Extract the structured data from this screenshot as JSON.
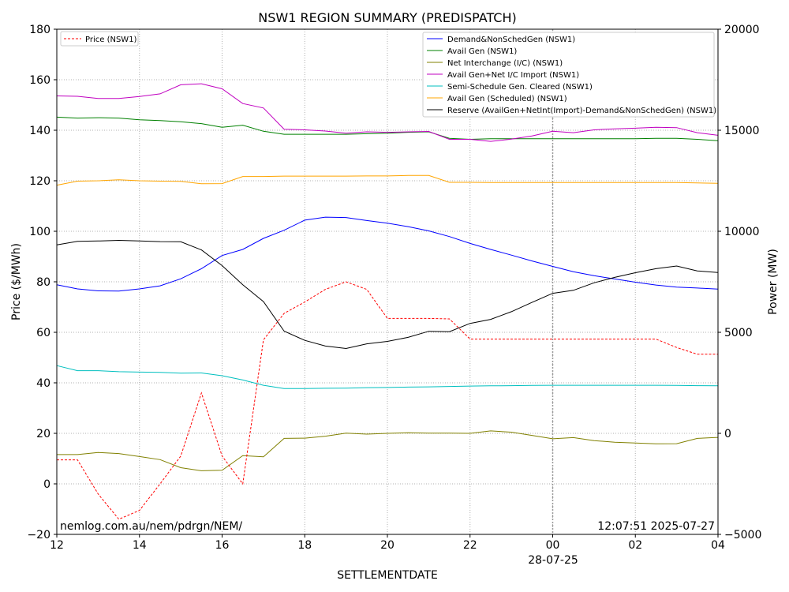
{
  "chart_data": {
    "type": "line",
    "title": "NSW1 REGION SUMMARY (PREDISPATCH)",
    "xlabel": "SETTLEMENTDATE",
    "ylabel_left": "Price ($/MWh)",
    "ylabel_right": "Power (MW)",
    "ylim_left": [
      -20,
      180
    ],
    "ylim_right": [
      -5000,
      20000
    ],
    "yticks_left": [
      -20,
      0,
      20,
      40,
      60,
      80,
      100,
      120,
      140,
      160,
      180
    ],
    "yticks_right": [
      -5000,
      0,
      5000,
      10000,
      15000,
      20000
    ],
    "x_domain_hours": [
      12,
      28
    ],
    "xticks": [
      {
        "h": 12,
        "label": "12"
      },
      {
        "h": 14,
        "label": "14"
      },
      {
        "h": 16,
        "label": "16"
      },
      {
        "h": 18,
        "label": "18"
      },
      {
        "h": 20,
        "label": "20"
      },
      {
        "h": 22,
        "label": "22"
      },
      {
        "h": 24,
        "label": "00"
      },
      {
        "h": 26,
        "label": "02"
      },
      {
        "h": 28,
        "label": "04"
      }
    ],
    "date_label": "28-07-25",
    "date_marker_hour": 24,
    "grid": true,
    "footer_left": "nemlog.com.au/nem/pdrgn/NEM/",
    "footer_right": "12:07:51 2025-07-27",
    "legend_left_position": "top-left",
    "legend_right_position": "top-right",
    "x": [
      12,
      12.5,
      13,
      13.5,
      14,
      14.5,
      15,
      15.5,
      16,
      16.5,
      17,
      17.5,
      18,
      18.5,
      19,
      19.5,
      20,
      20.5,
      21,
      21.5,
      22,
      22.5,
      23,
      23.5,
      24,
      24.5,
      25,
      25.5,
      26,
      26.5,
      27,
      27.5,
      28
    ],
    "price_series": {
      "name": "Price (NSW1)",
      "color": "#ff0000",
      "dashed": true,
      "values": [
        9.5,
        9.5,
        -4,
        -14,
        -10.5,
        0,
        11,
        36,
        11,
        0,
        57,
        67.5,
        72,
        77,
        80,
        77,
        65.5,
        65.5,
        65.5,
        65.3,
        57.3,
        57.3,
        57.3,
        57.3,
        57.3,
        57.3,
        57.3,
        57.3,
        57.3,
        57.3,
        54,
        51.3,
        51.3
      ]
    },
    "series": [
      {
        "name": "Demand&NonSchedGen (NSW1)",
        "color": "#0000ff",
        "values": [
          7350,
          7150,
          7050,
          7040,
          7150,
          7300,
          7650,
          8150,
          8800,
          9100,
          9650,
          10050,
          10550,
          10700,
          10680,
          10530,
          10400,
          10230,
          10020,
          9740,
          9400,
          9100,
          8820,
          8530,
          8260,
          8000,
          7800,
          7640,
          7480,
          7340,
          7240,
          7190,
          7140
        ]
      },
      {
        "name": "Avail Gen (NSW1)",
        "color": "#008000",
        "values": [
          15650,
          15600,
          15620,
          15600,
          15520,
          15480,
          15420,
          15330,
          15150,
          15250,
          14950,
          14800,
          14800,
          14800,
          14800,
          14830,
          14850,
          14900,
          14920,
          14600,
          14550,
          14580,
          14580,
          14580,
          14580,
          14580,
          14580,
          14580,
          14580,
          14600,
          14600,
          14550,
          14480
        ]
      },
      {
        "name": "Net Interchange (I/C) (NSW1)",
        "color": "#808000",
        "values": [
          -1050,
          -1050,
          -950,
          -1000,
          -1150,
          -1300,
          -1700,
          -1850,
          -1830,
          -1100,
          -1160,
          -250,
          -240,
          -140,
          10,
          -40,
          0,
          30,
          10,
          10,
          0,
          120,
          60,
          -100,
          -270,
          -210,
          -360,
          -440,
          -480,
          -520,
          -510,
          -250,
          -200
        ]
      },
      {
        "name": "Avail Gen+Net I/C Import (NSW1)",
        "color": "#c000c0",
        "values": [
          16700,
          16680,
          16570,
          16570,
          16670,
          16800,
          17250,
          17300,
          17050,
          16320,
          16100,
          15050,
          15020,
          14960,
          14850,
          14920,
          14900,
          14920,
          14940,
          14550,
          14550,
          14450,
          14560,
          14720,
          14950,
          14880,
          15020,
          15070,
          15100,
          15150,
          15130,
          14880,
          14750
        ]
      },
      {
        "name": "Semi-Schedule Gen. Cleared (NSW1)",
        "color": "#00bfbf",
        "values": [
          3350,
          3100,
          3100,
          3050,
          3030,
          3020,
          2980,
          2990,
          2850,
          2640,
          2380,
          2220,
          2220,
          2230,
          2240,
          2260,
          2270,
          2290,
          2300,
          2320,
          2340,
          2350,
          2360,
          2370,
          2380,
          2380,
          2380,
          2380,
          2380,
          2380,
          2370,
          2360,
          2350
        ]
      },
      {
        "name": "Avail Gen (Scheduled) (NSW1)",
        "color": "#ffa500",
        "values": [
          12280,
          12480,
          12500,
          12550,
          12500,
          12480,
          12470,
          12350,
          12360,
          12710,
          12710,
          12730,
          12730,
          12730,
          12730,
          12740,
          12740,
          12760,
          12760,
          12420,
          12420,
          12410,
          12410,
          12410,
          12410,
          12410,
          12410,
          12410,
          12410,
          12410,
          12410,
          12390,
          12370
        ]
      },
      {
        "name": "Reserve (AvailGen+NetInt(Import)-Demand&NonSchedGen) (NSW1)",
        "color": "#000000",
        "values": [
          9330,
          9500,
          9520,
          9550,
          9520,
          9490,
          9480,
          9080,
          8300,
          7350,
          6520,
          5060,
          4600,
          4320,
          4200,
          4430,
          4550,
          4750,
          5050,
          5030,
          5440,
          5640,
          6020,
          6480,
          6930,
          7080,
          7450,
          7720,
          7950,
          8150,
          8280,
          8040,
          7960
        ]
      }
    ]
  }
}
